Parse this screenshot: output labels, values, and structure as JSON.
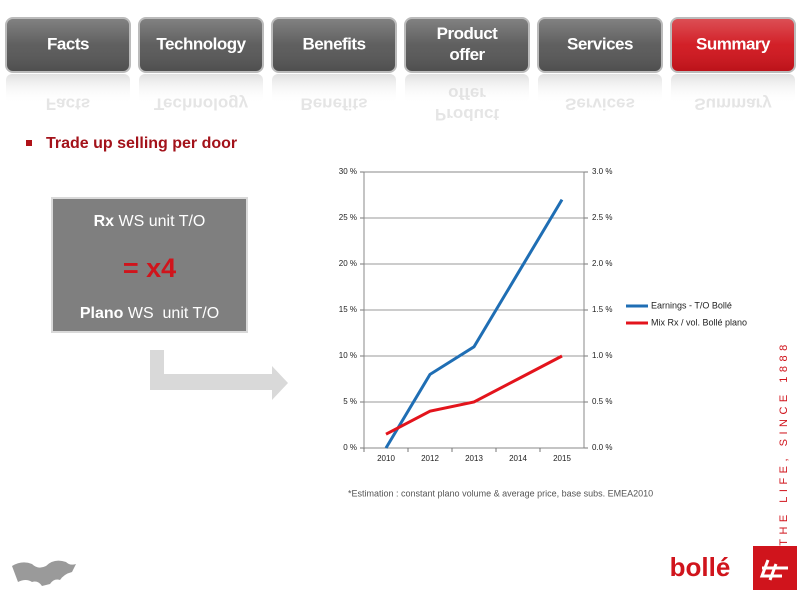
{
  "tabs": [
    {
      "lines": [
        "Facts"
      ],
      "color": "#575757"
    },
    {
      "lines": [
        "Technology"
      ],
      "color": "#575757"
    },
    {
      "lines": [
        "Benefits"
      ],
      "color": "#575757"
    },
    {
      "lines": [
        "Product",
        "offer"
      ],
      "color": "#575757"
    },
    {
      "lines": [
        "Services"
      ],
      "color": "#575757"
    },
    {
      "lines": [
        "Summary"
      ],
      "color": "#d0141c"
    }
  ],
  "bullet": "Trade up selling per door",
  "box": {
    "top_bold": "Rx",
    "top_rest": " WS unit T/O",
    "middle": "= x4",
    "bottom_bold": "Plano",
    "bottom_rest": " WS  unit T/O"
  },
  "chart_data": {
    "type": "line",
    "categories": [
      "2010",
      "2012",
      "2013",
      "2014",
      "2015"
    ],
    "series": [
      {
        "name": "Earnings - T/O Bollé",
        "color": "#1f6eb4",
        "values": [
          0,
          8,
          11,
          19,
          27
        ]
      },
      {
        "name": "Mix Rx / vol. Bollé plano",
        "color": "#e3141c",
        "values": [
          0.15,
          0.4,
          0.5,
          0.75,
          1.0
        ],
        "axis": "y2"
      }
    ],
    "ylim": [
      0,
      30
    ],
    "yticks": [
      {
        "value": 0,
        "label": "0 %"
      },
      {
        "value": 5,
        "label": "5 %"
      },
      {
        "value": 10,
        "label": "10 %"
      },
      {
        "value": 15,
        "label": "15 %"
      },
      {
        "value": 20,
        "label": "20 %"
      },
      {
        "value": 25,
        "label": "25 %"
      },
      {
        "value": 30,
        "label": "30 %"
      }
    ],
    "y2lim": [
      0,
      3
    ],
    "y2ticks": [
      {
        "value": 0,
        "label": "0.0 %"
      },
      {
        "value": 0.5,
        "label": "0.5 %"
      },
      {
        "value": 1,
        "label": "1.0 %"
      },
      {
        "value": 1.5,
        "label": "1.5 %"
      },
      {
        "value": 2,
        "label": "2.0 %"
      },
      {
        "value": 2.5,
        "label": "2.5 %"
      },
      {
        "value": 3,
        "label": "3.0 %"
      }
    ],
    "grid": true,
    "legend": "right"
  },
  "footnote": "*Estimation : constant plano volume & average price, base subs. EMEA2010",
  "tagline": "THE LIFE, SINCE 1888",
  "logo": "bollé"
}
